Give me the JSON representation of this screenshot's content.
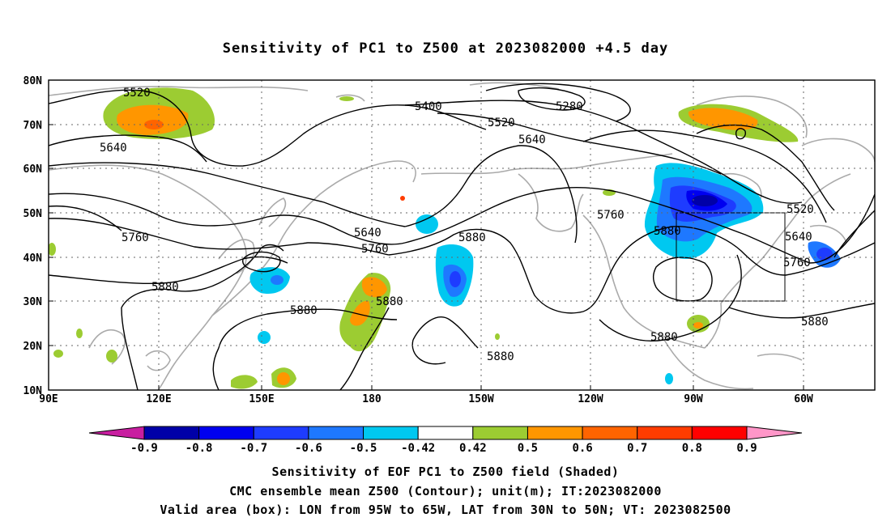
{
  "title": "Sensitivity of PC1 to Z500 at 2023082000 +4.5 day",
  "lat_labels": [
    "80N",
    "70N",
    "60N",
    "50N",
    "40N",
    "30N",
    "20N",
    "10N"
  ],
  "lon_labels": [
    "90E",
    "120E",
    "150E",
    "180",
    "150W",
    "120W",
    "90W",
    "60W"
  ],
  "contour_labels": [
    "5520",
    "5400",
    "5280",
    "5520",
    "5640",
    "5640",
    "5760",
    "5640",
    "5760",
    "5880",
    "5880",
    "5880",
    "5880",
    "5880",
    "5760",
    "5880",
    "5520",
    "5640",
    "5760",
    "5880"
  ],
  "colorbar": {
    "labels": [
      "-0.9",
      "-0.8",
      "-0.7",
      "-0.6",
      "-0.5",
      "-0.42",
      "0.42",
      "0.5",
      "0.6",
      "0.7",
      "0.8",
      "0.9"
    ],
    "colors": [
      "#c81ea0",
      "#0000a8",
      "#0000f0",
      "#1e3cff",
      "#1e78ff",
      "#00c8f0",
      "#ffffff",
      "#9ccc32",
      "#ff9600",
      "#ff6400",
      "#ff3c00",
      "#ff0000",
      "#ff96c8"
    ]
  },
  "captions": [
    "Sensitivity of EOF PC1 to Z500 field (Shaded)",
    "CMC ensemble mean Z500 (Contour); unit(m); IT:2023082000",
    "Valid area (box): LON from 95W to 65W, LAT from 30N to 50N; VT: 2023082500"
  ]
}
